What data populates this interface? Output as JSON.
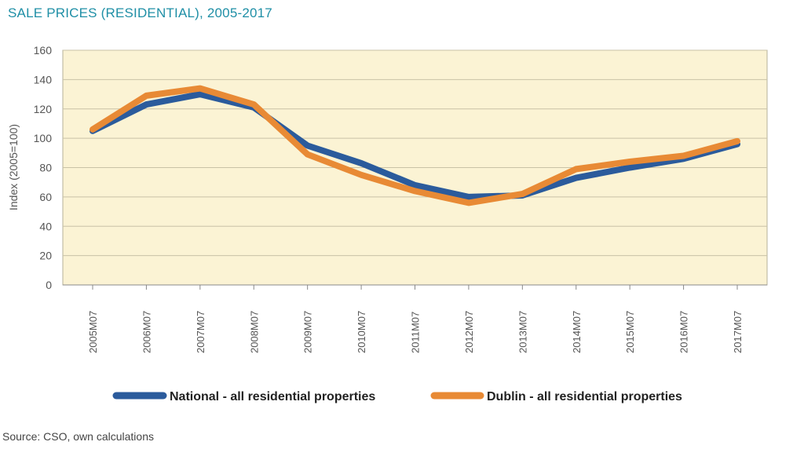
{
  "chart_title": "SALE PRICES (RESIDENTIAL), 2005-2017",
  "source_note": "Source: CSO, own calculations",
  "colors": {
    "national": "#2b5b9c",
    "dublin": "#e88a35",
    "plot_bg": "#fbf3d4",
    "title": "#1f8fa6"
  },
  "chart_data": {
    "type": "line",
    "title": "SALE PRICES (RESIDENTIAL), 2005-2017",
    "xlabel": "",
    "ylabel": "Index (2005=100)",
    "ylim": [
      0,
      160
    ],
    "yticks": [
      "0",
      "20",
      "40",
      "60",
      "80",
      "100",
      "120",
      "140",
      "160"
    ],
    "categories": [
      "2005M07",
      "2006M07",
      "2007M07",
      "2008M07",
      "2009M07",
      "2010M07",
      "2011M07",
      "2012M07",
      "2013M07",
      "2014M07",
      "2015M07",
      "2016M07",
      "2017M07"
    ],
    "grid": true,
    "legend_position": "bottom",
    "series": [
      {
        "name": "National - all residential properties",
        "values": [
          105,
          123,
          130,
          121,
          95,
          83,
          68,
          60,
          61,
          73,
          80,
          86,
          96
        ]
      },
      {
        "name": "Dublin - all residential properties",
        "values": [
          106,
          129,
          134,
          123,
          89,
          75,
          64,
          56,
          62,
          79,
          84,
          88,
          98
        ]
      }
    ]
  }
}
